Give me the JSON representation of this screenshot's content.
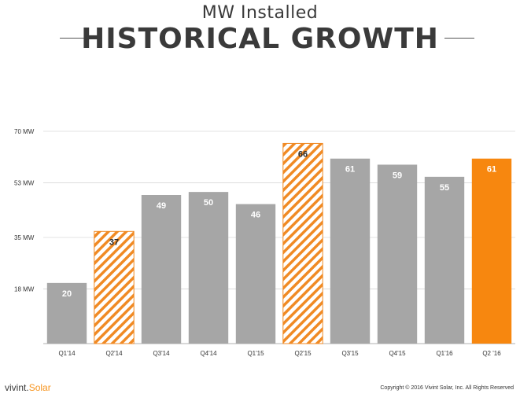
{
  "header": {
    "subtitle": "MW Installed",
    "title": "HISTORICAL GROWTH"
  },
  "footer": {
    "logo_text": "vivint.",
    "logo_accent": "Solar",
    "copyright": "Copyright © 2016 Vivint Solar, Inc. All Rights Reserved"
  },
  "colors": {
    "bar_gray": "#a6a6a6",
    "accent_orange": "#f7870f",
    "hatch_orange": "#f08a24"
  },
  "chart_data": {
    "type": "bar",
    "categories": [
      "Q1'14",
      "Q2'14",
      "Q3'14",
      "Q4'14",
      "Q1'15",
      "Q2'15",
      "Q3'15",
      "Q4'15",
      "Q1'16",
      "Q2 '16"
    ],
    "values": [
      20,
      37,
      49,
      50,
      46,
      66,
      61,
      59,
      55,
      61
    ],
    "styles": [
      "solid-gray",
      "hatched-orange",
      "solid-gray",
      "solid-gray",
      "solid-gray",
      "hatched-orange",
      "solid-gray",
      "solid-gray",
      "solid-gray",
      "solid-orange"
    ],
    "yticks": [
      18,
      35,
      53,
      70
    ],
    "ytick_labels": [
      "18 MW",
      "35 MW",
      "53 MW",
      "70 MW"
    ],
    "ylim": [
      0,
      70
    ],
    "grid": true
  }
}
